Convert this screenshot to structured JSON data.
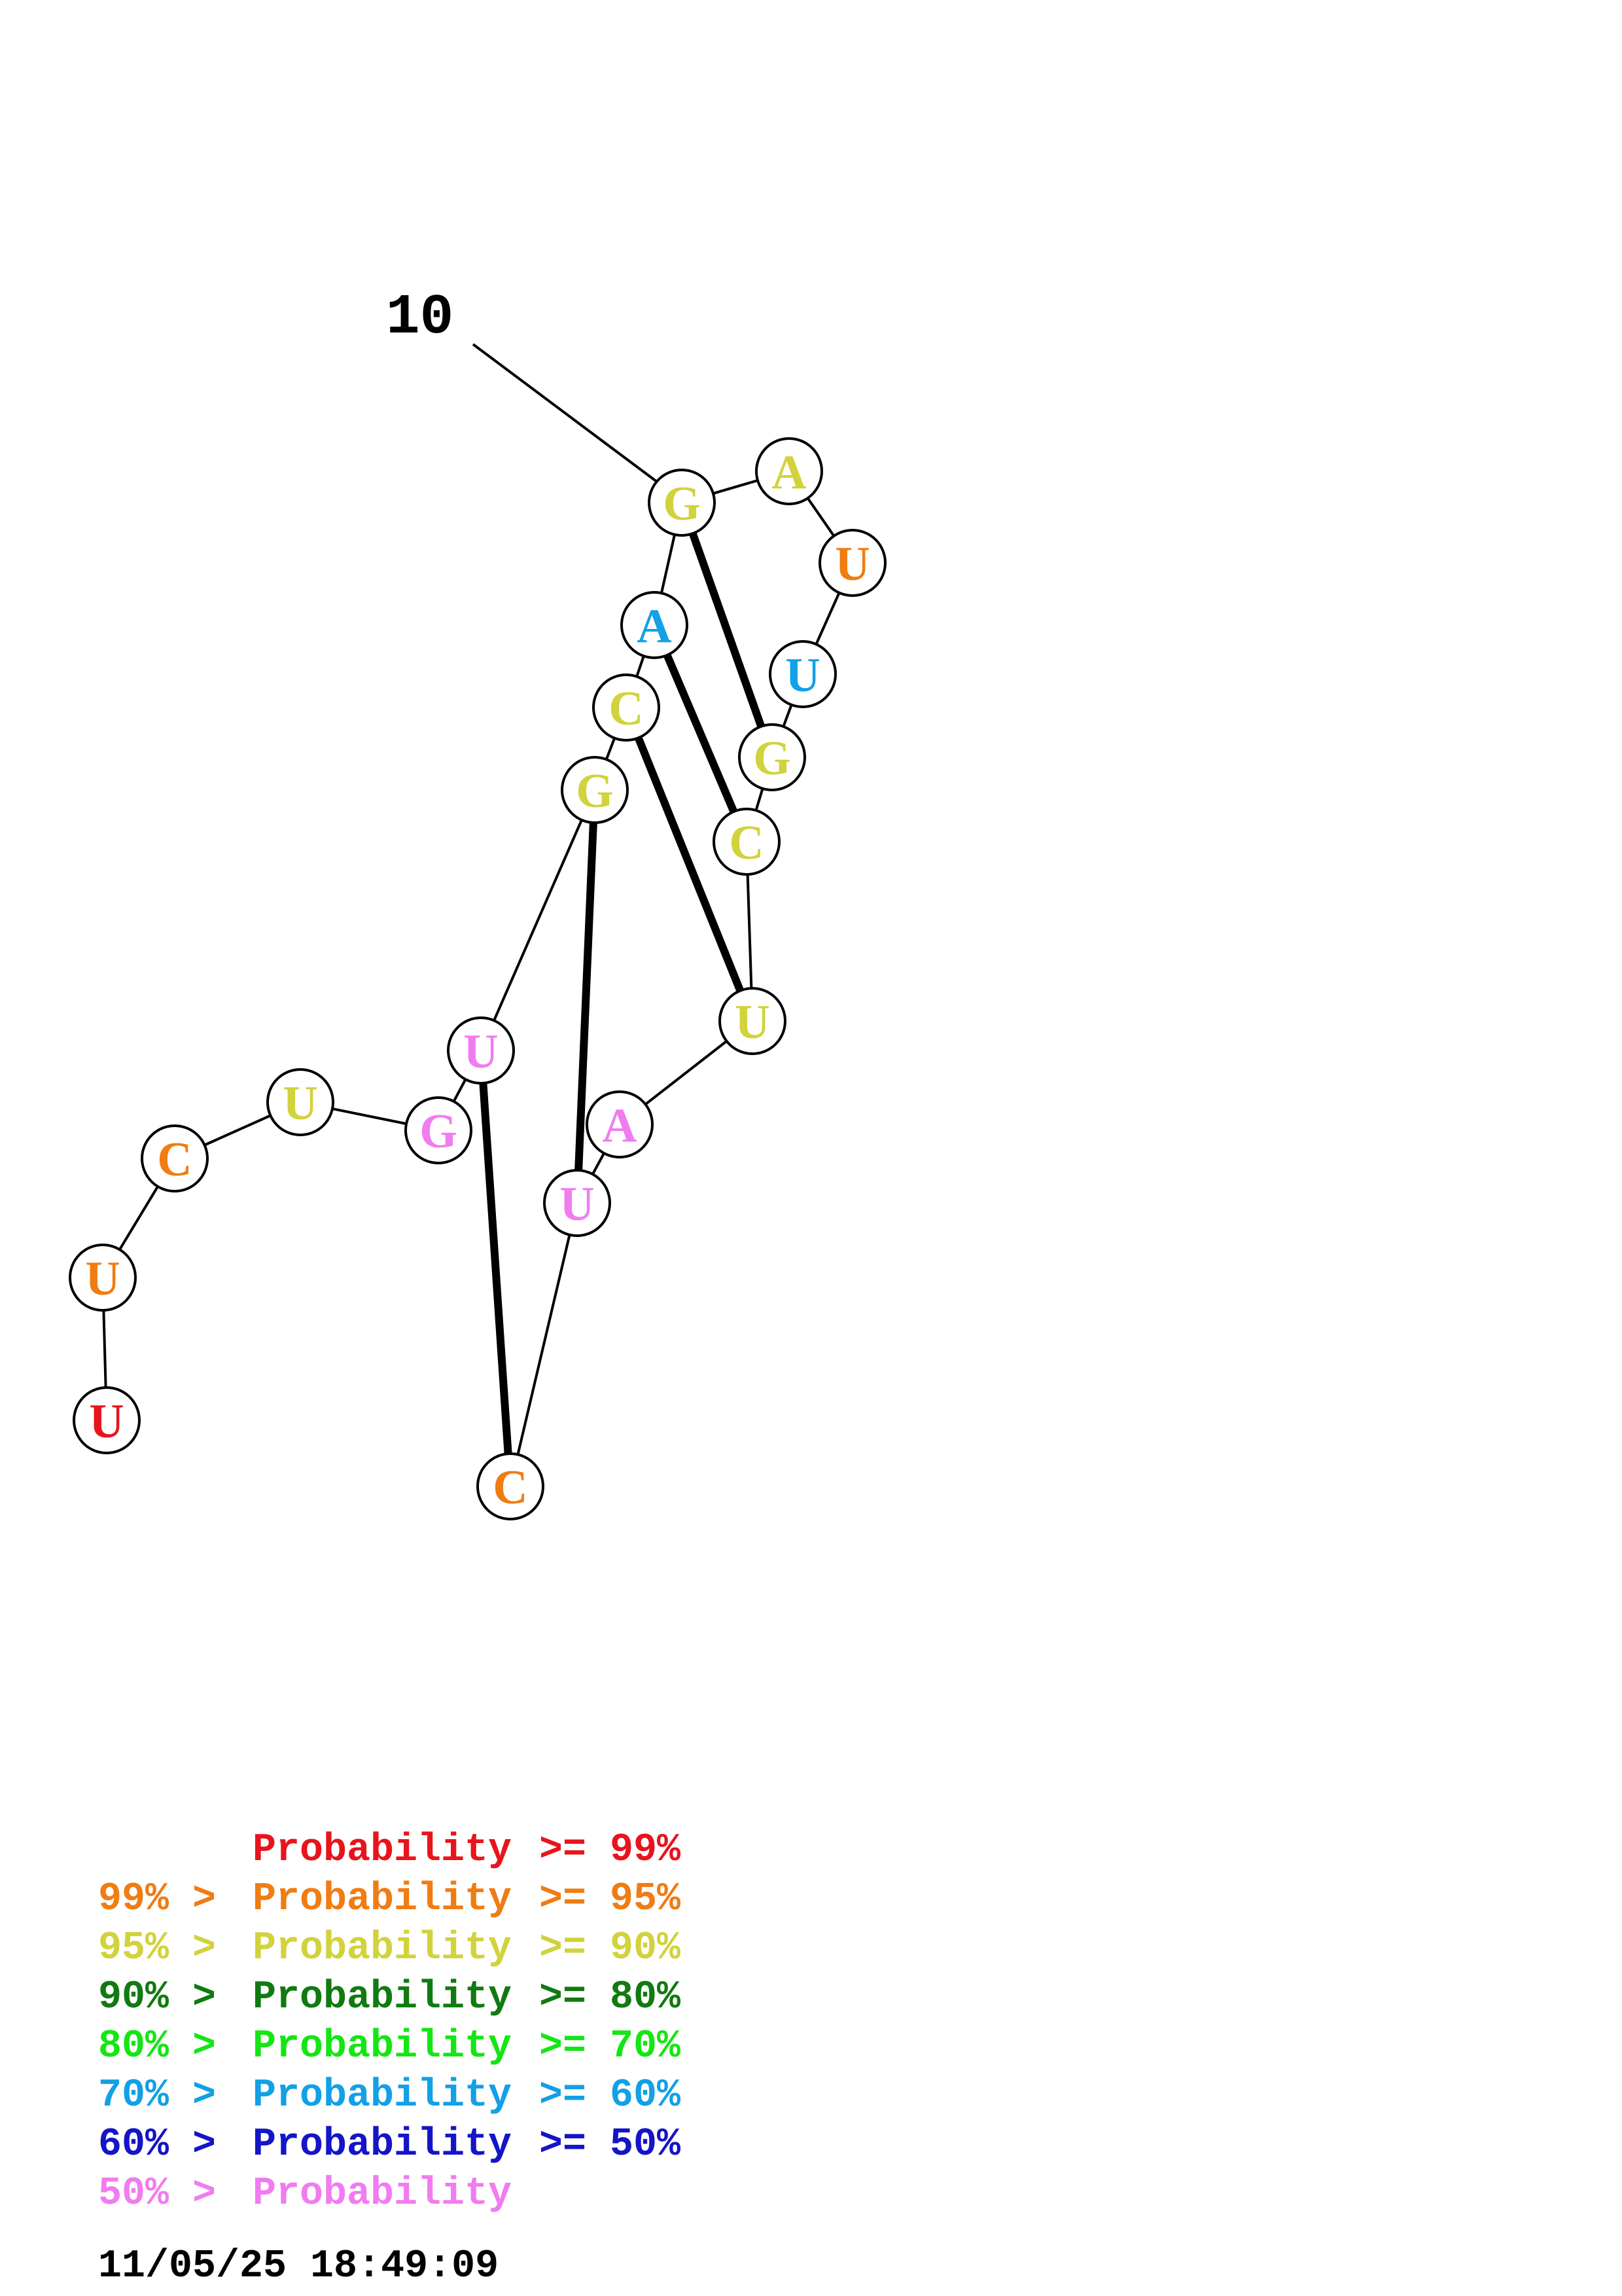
{
  "colors": {
    "red": "#e8141c",
    "orange": "#f07c12",
    "yellow": "#d2d23c",
    "darkgreen": "#117a11",
    "green": "#14e614",
    "cyan": "#12a0e6",
    "blue": "#1414c8",
    "pink": "#f07cf0"
  },
  "position_label": "10",
  "nucleotides": [
    {
      "base": "U",
      "color": "red"
    },
    {
      "base": "U",
      "color": "orange"
    },
    {
      "base": "C",
      "color": "orange"
    },
    {
      "base": "U",
      "color": "yellow"
    },
    {
      "base": "G",
      "color": "pink"
    },
    {
      "base": "U",
      "color": "pink"
    },
    {
      "base": "G",
      "color": "yellow"
    },
    {
      "base": "C",
      "color": "yellow"
    },
    {
      "base": "A",
      "color": "cyan"
    },
    {
      "base": "G",
      "color": "yellow"
    },
    {
      "base": "A",
      "color": "yellow"
    },
    {
      "base": "U",
      "color": "orange"
    },
    {
      "base": "U",
      "color": "cyan"
    },
    {
      "base": "G",
      "color": "yellow"
    },
    {
      "base": "C",
      "color": "yellow"
    },
    {
      "base": "U",
      "color": "yellow"
    },
    {
      "base": "A",
      "color": "pink"
    },
    {
      "base": "U",
      "color": "pink"
    },
    {
      "base": "C",
      "color": "orange"
    }
  ],
  "base_pairs": [
    [
      9,
      13
    ],
    [
      8,
      14
    ],
    [
      7,
      15
    ],
    [
      6,
      17
    ],
    [
      5,
      18
    ]
  ],
  "legend": [
    {
      "prefix": "",
      "label": "Probability",
      "suffix": ">= 99%",
      "color": "red"
    },
    {
      "prefix": "99% >",
      "label": "Probability",
      "suffix": ">= 95%",
      "color": "orange"
    },
    {
      "prefix": "95% >",
      "label": "Probability",
      "suffix": ">= 90%",
      "color": "yellow"
    },
    {
      "prefix": "90% >",
      "label": "Probability",
      "suffix": ">= 80%",
      "color": "darkgreen"
    },
    {
      "prefix": "80% >",
      "label": "Probability",
      "suffix": ">= 70%",
      "color": "green"
    },
    {
      "prefix": "70% >",
      "label": "Probability",
      "suffix": ">= 60%",
      "color": "cyan"
    },
    {
      "prefix": "60% >",
      "label": "Probability",
      "suffix": ">= 50%",
      "color": "blue"
    },
    {
      "prefix": "50% >",
      "label": "Probability",
      "suffix": "",
      "color": "pink"
    }
  ],
  "timestamp": "11/05/25 18:49:09"
}
